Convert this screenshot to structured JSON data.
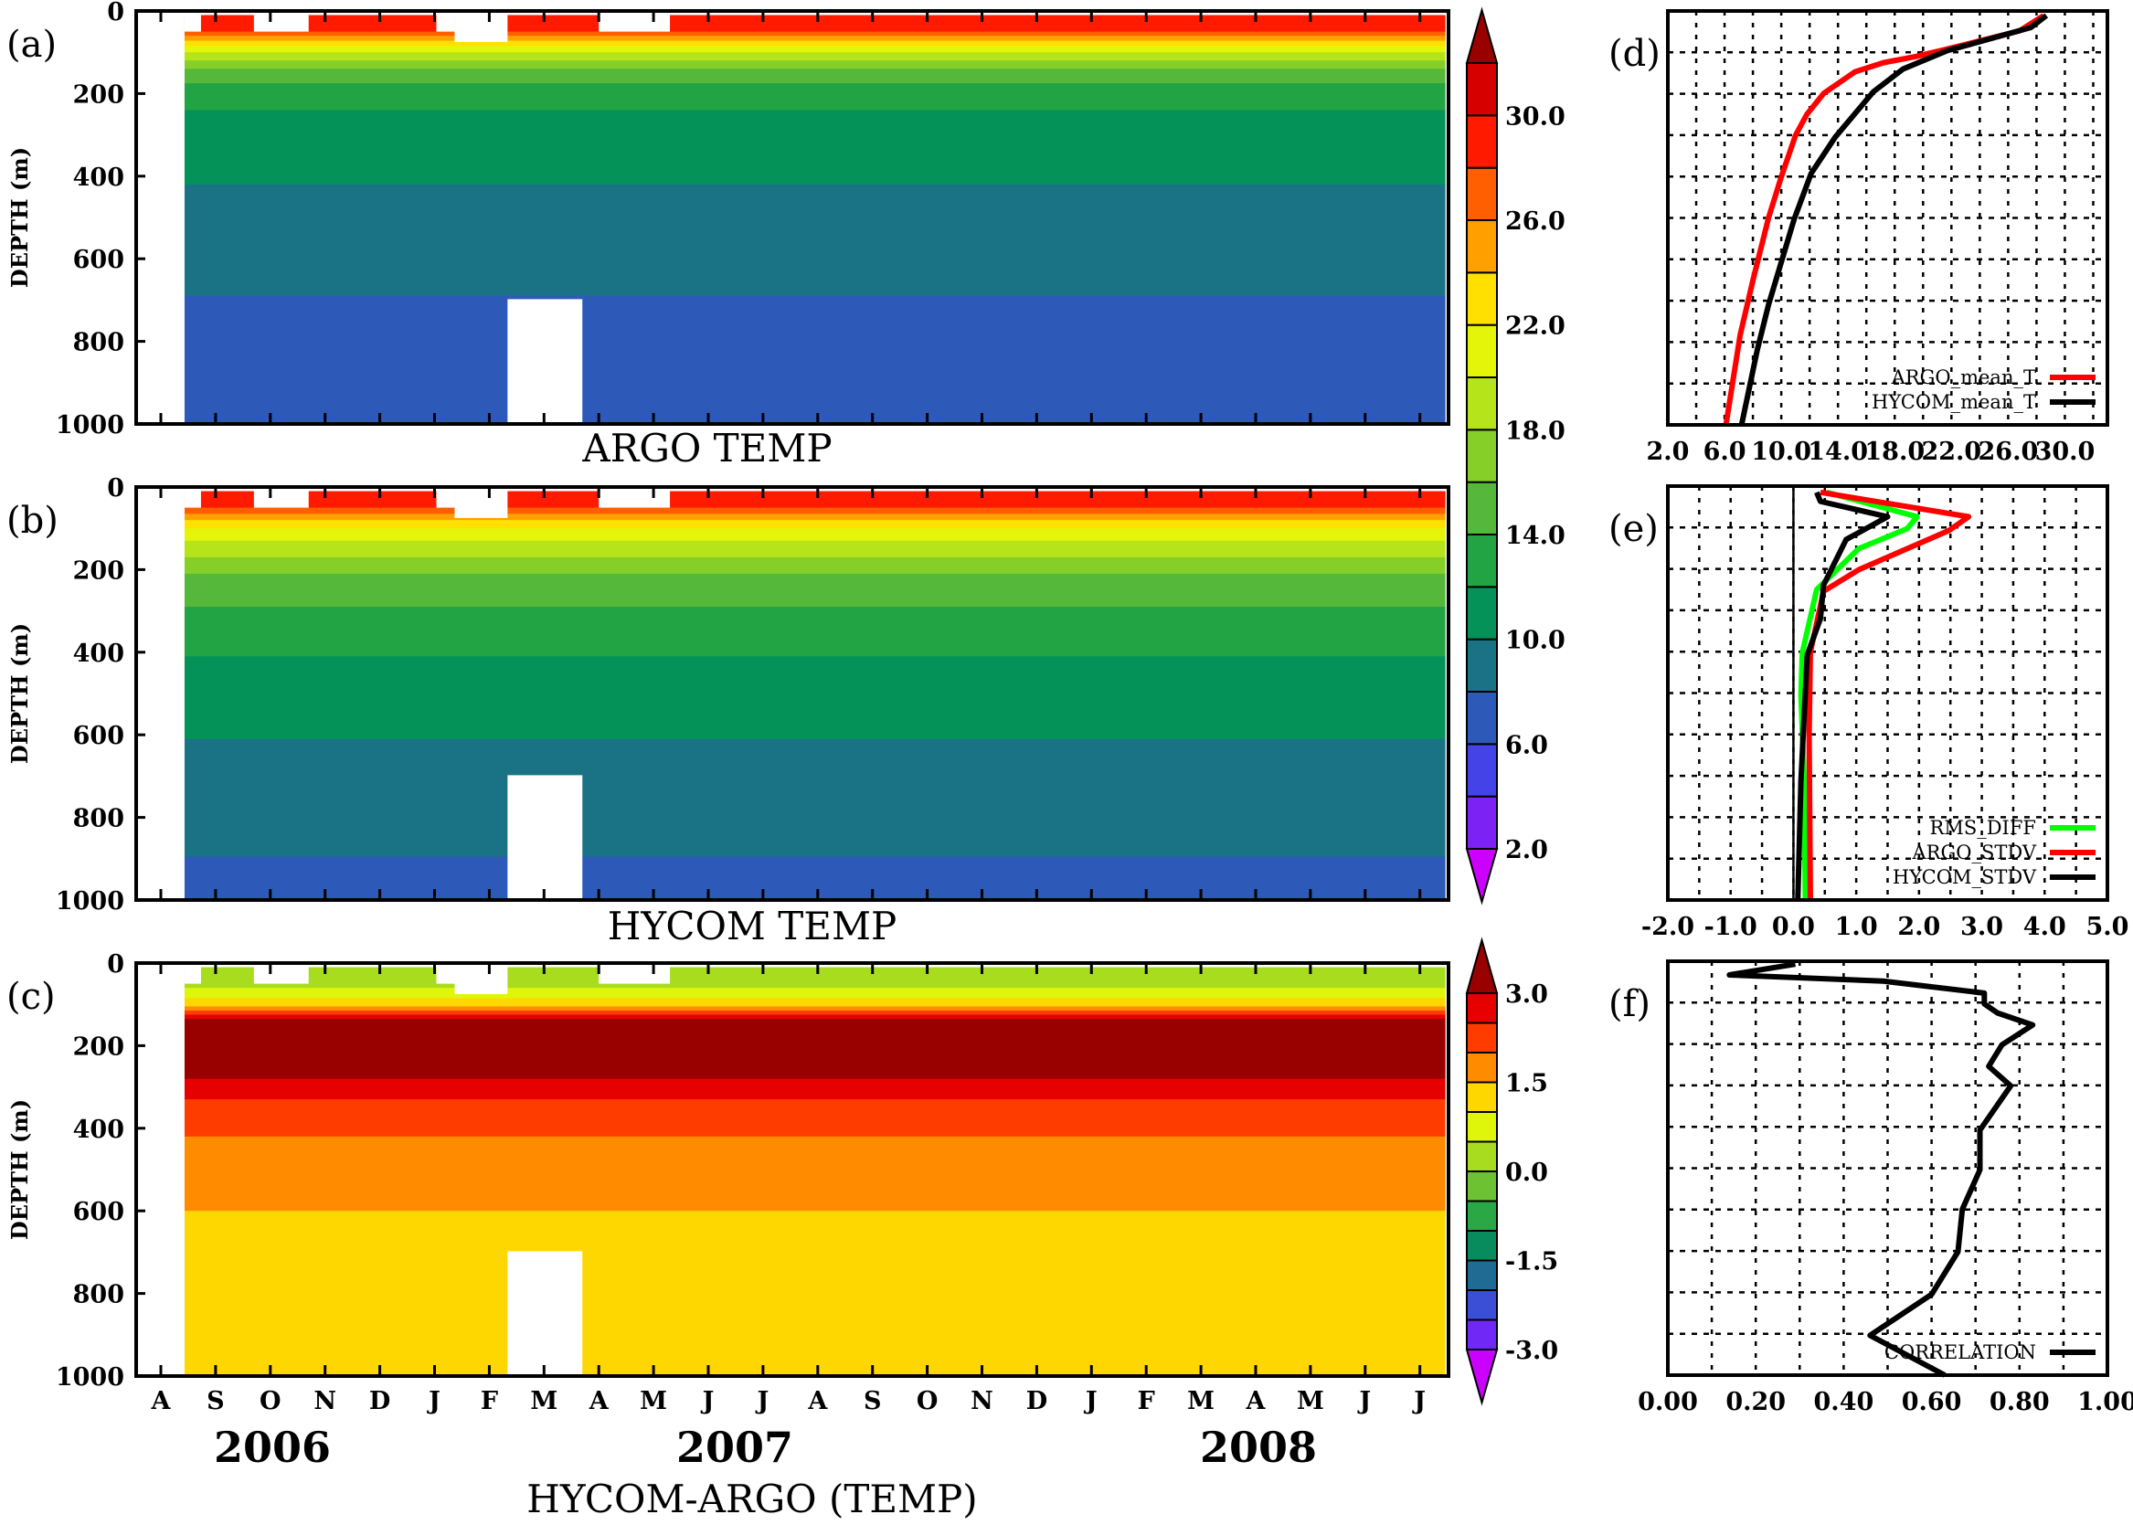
{
  "chart_data": [
    {
      "panel": "(a)",
      "type": "heatmap",
      "title": "ARGO TEMP",
      "ylabel": "DEPTH (m)",
      "ylim": [
        0,
        1000
      ],
      "y_inverted": true,
      "yticks": [
        "0",
        "200",
        "400",
        "600",
        "800",
        "1000"
      ],
      "xlim": [
        "2006-07-18",
        "2008-07-16"
      ],
      "colorbar": "temp",
      "bands": [
        {
          "top": 10,
          "bottom": 50,
          "min": 28
        },
        {
          "top": 50,
          "bottom": 60,
          "min": 26
        },
        {
          "top": 60,
          "bottom": 72,
          "min": 24
        },
        {
          "top": 72,
          "bottom": 85,
          "min": 22
        },
        {
          "top": 85,
          "bottom": 100,
          "min": 20
        },
        {
          "top": 100,
          "bottom": 120,
          "min": 18
        },
        {
          "top": 120,
          "bottom": 140,
          "min": 16
        },
        {
          "top": 140,
          "bottom": 175,
          "min": 14
        },
        {
          "top": 175,
          "bottom": 240,
          "min": 12
        },
        {
          "top": 240,
          "bottom": 420,
          "min": 10
        },
        {
          "top": 420,
          "bottom": 690,
          "min": 8
        },
        {
          "top": 690,
          "bottom": 1000,
          "min": 6
        }
      ],
      "data_range": [
        "2006-08-14",
        "2008-07-15"
      ]
    },
    {
      "panel": "(b)",
      "type": "heatmap",
      "title": "HYCOM TEMP",
      "ylabel": "DEPTH (m)",
      "ylim": [
        0,
        1000
      ],
      "y_inverted": true,
      "yticks": [
        "0",
        "200",
        "400",
        "600",
        "800",
        "1000"
      ],
      "xlim": [
        "2006-07-18",
        "2008-07-16"
      ],
      "colorbar": "temp",
      "bands": [
        {
          "top": 10,
          "bottom": 50,
          "min": 28
        },
        {
          "top": 50,
          "bottom": 65,
          "min": 26
        },
        {
          "top": 65,
          "bottom": 80,
          "min": 24
        },
        {
          "top": 80,
          "bottom": 100,
          "min": 22
        },
        {
          "top": 100,
          "bottom": 130,
          "min": 20
        },
        {
          "top": 130,
          "bottom": 170,
          "min": 18
        },
        {
          "top": 170,
          "bottom": 210,
          "min": 16
        },
        {
          "top": 210,
          "bottom": 290,
          "min": 14
        },
        {
          "top": 290,
          "bottom": 410,
          "min": 12
        },
        {
          "top": 410,
          "bottom": 610,
          "min": 10
        },
        {
          "top": 610,
          "bottom": 895,
          "min": 8
        },
        {
          "top": 895,
          "bottom": 1000,
          "min": 6
        }
      ],
      "data_range": [
        "2006-08-14",
        "2008-07-15"
      ]
    },
    {
      "panel": "(c)",
      "type": "heatmap",
      "title": "HYCOM-ARGO (TEMP)",
      "ylabel": "DEPTH (m)",
      "ylim": [
        0,
        1000
      ],
      "y_inverted": true,
      "yticks": [
        "0",
        "200",
        "400",
        "600",
        "800",
        "1000"
      ],
      "xlim": [
        "2006-07-18",
        "2008-07-16"
      ],
      "x_tick_labels": [
        "A",
        "S",
        "O",
        "N",
        "D",
        "J",
        "F",
        "M",
        "A",
        "M",
        "J",
        "J",
        "A",
        "S",
        "O",
        "N",
        "D",
        "J",
        "F",
        "M",
        "A",
        "M",
        "J",
        "J"
      ],
      "x_year_labels": [
        "2006",
        "2007",
        "2008"
      ],
      "colorbar": "diff",
      "bands": [
        {
          "top": 10,
          "bottom": 60,
          "min": 0.0
        },
        {
          "top": 60,
          "bottom": 85,
          "min": 0.5
        },
        {
          "top": 85,
          "bottom": 105,
          "min": 1.0
        },
        {
          "top": 105,
          "bottom": 115,
          "min": 1.5
        },
        {
          "top": 115,
          "bottom": 125,
          "min": 2.0
        },
        {
          "top": 125,
          "bottom": 135,
          "min": 2.5
        },
        {
          "top": 135,
          "bottom": 280,
          "min": 3.0
        },
        {
          "top": 280,
          "bottom": 330,
          "min": 2.5
        },
        {
          "top": 330,
          "bottom": 420,
          "min": 2.0
        },
        {
          "top": 420,
          "bottom": 600,
          "min": 1.5
        },
        {
          "top": 600,
          "bottom": 1000,
          "min": 1.0
        }
      ],
      "data_range": [
        "2006-08-14",
        "2008-07-15"
      ]
    },
    {
      "panel": "(d)",
      "type": "line",
      "xlim": [
        2,
        33
      ],
      "ylim": [
        0,
        1000
      ],
      "y_inverted": true,
      "grid": true,
      "legend": "bottom-right",
      "xgrid_step": 2,
      "xticks": [
        "2.0",
        "6.0",
        "10.0",
        "14.0",
        "18.0",
        "22.0",
        "26.0",
        "30.0"
      ],
      "series": [
        {
          "name": "ARGO_mean_T",
          "color": "#ff0000",
          "x": [
            28.5,
            26.8,
            21.7,
            19.5,
            17.2,
            15.2,
            13.0,
            11.8,
            11.0,
            10.0,
            9.1,
            8.0,
            7.1,
            6.1
          ],
          "y": [
            11,
            48,
            92,
            110,
            125,
            147,
            199,
            250,
            301,
            401,
            500,
            651,
            783,
            1000
          ]
        },
        {
          "name": "HYCOM_mean_T",
          "color": "#000000",
          "x": [
            28.7,
            27.6,
            21.7,
            18.6,
            16.5,
            13.8,
            12.1,
            10.9,
            10.0,
            9.1,
            8.3,
            7.2
          ],
          "y": [
            11,
            40,
            96,
            140,
            195,
            305,
            393,
            504,
            607,
            710,
            820,
            1000
          ]
        }
      ]
    },
    {
      "panel": "(e)",
      "type": "line",
      "xlim": [
        -2,
        5
      ],
      "ylim": [
        0,
        1000
      ],
      "y_inverted": true,
      "grid": true,
      "legend": "bottom-right",
      "xgrid_step": 0.5,
      "xticks": [
        "-2.0",
        "-1.0",
        "0.0",
        "1.0",
        "2.0",
        "3.0",
        "4.0",
        "5.0"
      ],
      "series": [
        {
          "name": "RMS_DIFF",
          "color": "#00ff00",
          "x": [
            0.53,
            1.97,
            1.81,
            1.04,
            0.37,
            0.14,
            0.12,
            0.17,
            0.19
          ],
          "y": [
            15,
            74,
            103,
            151,
            250,
            404,
            504,
            710,
            1000
          ]
        },
        {
          "name": "ARGO_STDV",
          "color": "#ff0000",
          "x": [
            0.43,
            2.79,
            2.48,
            1.04,
            0.48,
            0.27,
            0.25,
            0.27
          ],
          "y": [
            15,
            74,
            107,
            202,
            254,
            401,
            599,
            1000
          ]
        },
        {
          "name": "HYCOM_STDV",
          "color": "#000000",
          "x": [
            0.37,
            0.43,
            1.5,
            0.84,
            0.48,
            0.43,
            0.22,
            0.12,
            0.07
          ],
          "y": [
            15,
            37,
            74,
            129,
            239,
            320,
            408,
            710,
            1000
          ]
        }
      ]
    },
    {
      "panel": "(f)",
      "type": "line",
      "xlim": [
        0,
        1
      ],
      "ylim": [
        0,
        1000
      ],
      "y_inverted": true,
      "grid": true,
      "legend": "bottom-right",
      "xgrid_step": 0.1,
      "xticks": [
        "0.00",
        "0.20",
        "0.40",
        "0.60",
        "0.80",
        "1.00"
      ],
      "series": [
        {
          "name": "CORRELATION",
          "color": "#000000",
          "x": [
            0.29,
            0.14,
            0.49,
            0.72,
            0.72,
            0.75,
            0.83,
            0.76,
            0.73,
            0.78,
            0.71,
            0.71,
            0.67,
            0.66,
            0.6,
            0.46,
            0.63
          ],
          "y": [
            7,
            33,
            48,
            77,
            103,
            125,
            154,
            202,
            254,
            301,
            408,
            504,
            599,
            702,
            805,
            904,
            1000
          ]
        }
      ]
    }
  ],
  "missing_data": [
    {
      "from": "2006-08-14",
      "to": "2006-08-23",
      "top": 0,
      "bottom": 50
    },
    {
      "from": "2006-09-22",
      "to": "2006-10-22",
      "top": 0,
      "bottom": 50
    },
    {
      "from": "2007-01-02",
      "to": "2007-01-12",
      "top": 0,
      "bottom": 50
    },
    {
      "from": "2007-01-12",
      "to": "2007-02-11",
      "top": 0,
      "bottom": 75
    },
    {
      "from": "2007-04-01",
      "to": "2007-05-10",
      "top": 0,
      "bottom": 50
    },
    {
      "from": "2007-02-11",
      "to": "2007-03-22",
      "top": 700,
      "bottom": 1000
    }
  ],
  "colorbars": {
    "temp": {
      "levels": [
        2,
        4,
        6,
        8,
        10,
        12,
        14,
        16,
        18,
        20,
        22,
        24,
        26,
        28,
        30,
        32
      ],
      "colors": [
        "#7d22f5",
        "#4343e8",
        "#2d5ab8",
        "#1a7385",
        "#049259",
        "#22a344",
        "#55b83a",
        "#85cf28",
        "#b5e41a",
        "#e5f50a",
        "#ffe000",
        "#ffa000",
        "#ff5f00",
        "#ff1a00",
        "#d70000"
      ],
      "over": "#990000",
      "under": "#cc00ff",
      "labels": [
        "2.0",
        "6.0",
        "10.0",
        "14.0",
        "18.0",
        "22.0",
        "26.0",
        "30.0"
      ]
    },
    "diff": {
      "levels": [
        -3,
        -2.5,
        -2,
        -1.5,
        -1,
        -0.5,
        0,
        0.5,
        1,
        1.5,
        2,
        2.5,
        3
      ],
      "colors": [
        "#6f28f5",
        "#3a4fd6",
        "#1f6b94",
        "#088c5e",
        "#2aa845",
        "#6cc232",
        "#a8dc1e",
        "#dff50a",
        "#ffd700",
        "#ff8c00",
        "#ff3c00",
        "#e60000"
      ],
      "over": "#990000",
      "under": "#cc00ff",
      "labels": [
        "-3.0",
        "-1.5",
        "0.0",
        "1.5",
        "3.0"
      ]
    }
  }
}
